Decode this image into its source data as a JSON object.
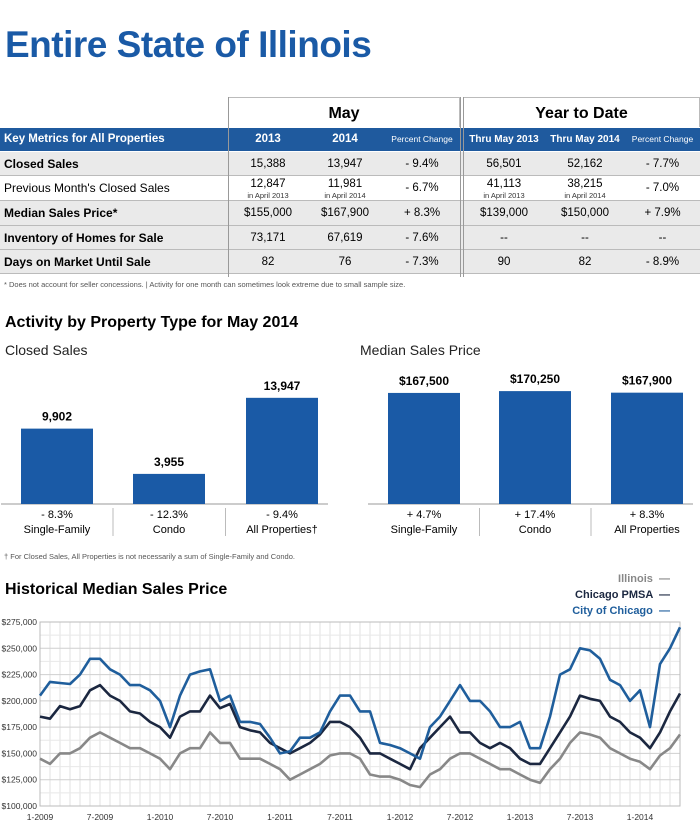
{
  "title": "Entire State of Illinois",
  "metrics": {
    "group_may": "May",
    "group_ytd": "Year to Date",
    "header_label": "Key Metrics for All Properties",
    "col_2013": "2013",
    "col_2014": "2014",
    "col_pct": "Percent Change",
    "col_ytd2013": "Thru May 2013",
    "col_ytd2014": "Thru May 2014",
    "col_ytdpct": "Percent Change",
    "rows": [
      {
        "label": "Closed Sales",
        "v2013": "15,388",
        "v2014": "13,947",
        "pct": "- 9.4%",
        "y2013": "56,501",
        "y2014": "52,162",
        "ypct": "- 7.7%"
      },
      {
        "label": "Previous Month's Closed Sales",
        "v2013": "12,847",
        "v2013sub": "in April 2013",
        "v2014": "11,981",
        "v2014sub": "in April 2014",
        "pct": "- 6.7%",
        "y2013": "41,113",
        "y2013sub": "in April 2013",
        "y2014": "38,215",
        "y2014sub": "in April 2014",
        "ypct": "- 7.0%"
      },
      {
        "label": "Median Sales Price*",
        "v2013": "$155,000",
        "v2014": "$167,900",
        "pct": "+ 8.3%",
        "y2013": "$139,000",
        "y2014": "$150,000",
        "ypct": "+ 7.9%"
      },
      {
        "label": "Inventory of Homes for Sale",
        "v2013": "73,171",
        "v2014": "67,619",
        "pct": "- 7.6%",
        "y2013": "--",
        "y2014": "--",
        "ypct": "--"
      },
      {
        "label": "Days on Market Until Sale",
        "v2013": "82",
        "v2014": "76",
        "pct": "- 7.3%",
        "y2013": "90",
        "y2014": "82",
        "ypct": "- 8.9%"
      }
    ],
    "footnote": "* Does not account for seller concessions.  |  Activity for one month can sometimes look extreme due to small sample size."
  },
  "activity": {
    "heading": "Activity by Property Type for May 2014",
    "footnote": "† For Closed Sales, All Properties is not necessarily a sum of Single-Family and Condo."
  },
  "historical": {
    "heading": "Historical Median Sales Price"
  },
  "colors": {
    "brand": "#1a5aa6",
    "bar": "#1a5aa6",
    "illinois": "#888888",
    "pmsa": "#1b2740",
    "chicago": "#1f5e9c"
  },
  "chart_data": [
    {
      "type": "bar",
      "title": "Closed Sales",
      "categories": [
        "Single-Family",
        "Condo",
        "All Properties†"
      ],
      "values": [
        9902,
        3955,
        13947
      ],
      "value_labels": [
        "9,902",
        "3,955",
        "13,947"
      ],
      "pct_labels": [
        "- 8.3%",
        "- 12.3%",
        "- 9.4%"
      ],
      "ylim": [
        0,
        15500
      ]
    },
    {
      "type": "bar",
      "title": "Median Sales Price",
      "categories": [
        "Single-Family",
        "Condo",
        "All Properties"
      ],
      "values": [
        167500,
        170250,
        167900
      ],
      "value_labels": [
        "$167,500",
        "$170,250",
        "$167,900"
      ],
      "pct_labels": [
        "+ 4.7%",
        "+ 17.4%",
        "+ 8.3%"
      ],
      "ylim": [
        0,
        187000
      ]
    },
    {
      "type": "line",
      "x_tick_labels": [
        "1-2009",
        "7-2009",
        "1-2010",
        "7-2010",
        "1-2011",
        "7-2011",
        "1-2012",
        "7-2012",
        "1-2013",
        "7-2013",
        "1-2014"
      ],
      "y_tick_labels": [
        "$100,000",
        "$125,000",
        "$150,000",
        "$175,000",
        "$200,000",
        "$225,000",
        "$250,000",
        "$275,000"
      ],
      "ylim": [
        100000,
        275000
      ],
      "x_count": 65,
      "legend_placement": "top-right",
      "grid": true,
      "series": [
        {
          "name": "Illinois",
          "color": "#888888",
          "values": [
            145000,
            140000,
            150000,
            150000,
            155000,
            165000,
            170000,
            165000,
            160000,
            155000,
            155000,
            150000,
            145000,
            135000,
            150000,
            155000,
            155000,
            170000,
            160000,
            160000,
            145000,
            145000,
            145000,
            140000,
            135000,
            125000,
            130000,
            135000,
            140000,
            148000,
            150000,
            150000,
            145000,
            130000,
            128000,
            128000,
            125000,
            120000,
            118000,
            130000,
            135000,
            145000,
            150000,
            150000,
            145000,
            140000,
            135000,
            135000,
            130000,
            125000,
            122000,
            135000,
            145000,
            160000,
            170000,
            168000,
            165000,
            155000,
            150000,
            145000,
            142000,
            135000,
            148000,
            155000,
            168000
          ]
        },
        {
          "name": "Chicago PMSA",
          "color": "#1b2740",
          "values": [
            185000,
            183000,
            195000,
            192000,
            195000,
            210000,
            215000,
            205000,
            200000,
            190000,
            188000,
            180000,
            175000,
            165000,
            185000,
            190000,
            190000,
            205000,
            193000,
            197000,
            175000,
            172000,
            170000,
            160000,
            155000,
            150000,
            155000,
            160000,
            168000,
            180000,
            180000,
            175000,
            165000,
            150000,
            150000,
            145000,
            140000,
            135000,
            155000,
            165000,
            175000,
            185000,
            170000,
            170000,
            160000,
            155000,
            160000,
            155000,
            145000,
            140000,
            140000,
            155000,
            170000,
            185000,
            205000,
            202000,
            200000,
            185000,
            180000,
            170000,
            165000,
            155000,
            170000,
            190000,
            207000
          ]
        },
        {
          "name": "City of Chicago",
          "color": "#1f5e9c",
          "values": [
            205000,
            218000,
            217000,
            216000,
            225000,
            240000,
            240000,
            230000,
            225000,
            215000,
            215000,
            210000,
            200000,
            175000,
            205000,
            225000,
            228000,
            230000,
            200000,
            205000,
            180000,
            180000,
            178000,
            165000,
            150000,
            152000,
            165000,
            165000,
            170000,
            190000,
            205000,
            205000,
            190000,
            190000,
            160000,
            158000,
            155000,
            150000,
            145000,
            175000,
            185000,
            200000,
            215000,
            200000,
            200000,
            190000,
            175000,
            175000,
            180000,
            155000,
            155000,
            185000,
            225000,
            230000,
            250000,
            248000,
            240000,
            220000,
            215000,
            200000,
            210000,
            175000,
            235000,
            250000,
            270000
          ]
        }
      ]
    }
  ]
}
